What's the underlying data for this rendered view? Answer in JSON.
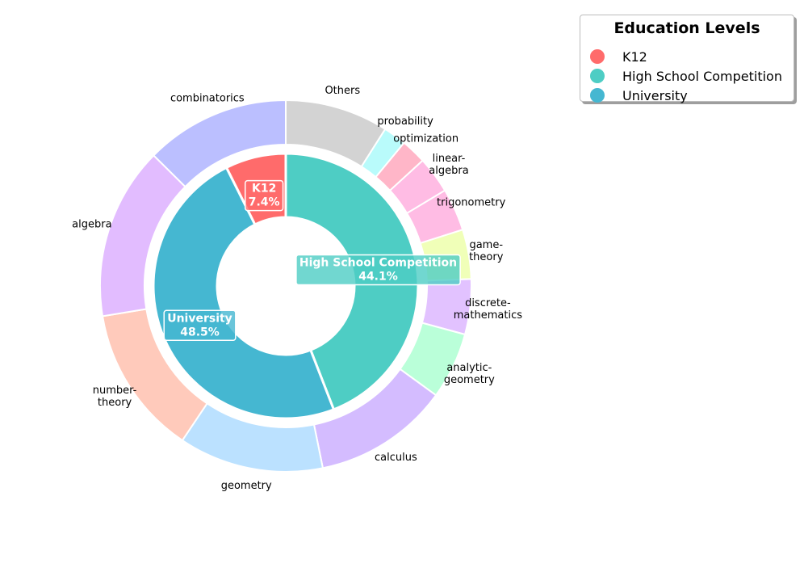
{
  "chart_data": {
    "type": "pie",
    "legend": {
      "title": "Education Levels",
      "placement": "top-right",
      "entries": [
        {
          "name": "K12",
          "color": "#ff6b6b"
        },
        {
          "name": "High School Competition",
          "color": "#4ecdc4"
        },
        {
          "name": "University",
          "color": "#45b7d1"
        }
      ]
    },
    "inner_ring": [
      {
        "name": "K12",
        "value": 7.4,
        "label": "7.4%",
        "color": "#ff6b6b"
      },
      {
        "name": "High School Competition",
        "value": 44.1,
        "label": "44.1%",
        "color": "#4ecdc4"
      },
      {
        "name": "University",
        "value": 48.5,
        "label": "48.5%",
        "color": "#45b7d1"
      }
    ],
    "outer_ring": [
      {
        "name": "Others",
        "label": [
          "Others"
        ],
        "value": 9.0,
        "color": "#d3d3d3"
      },
      {
        "name": "probability",
        "label": [
          "probability"
        ],
        "value": 2.0,
        "color": "#b9fbfb"
      },
      {
        "name": "optimization",
        "label": [
          "optimization"
        ],
        "value": 2.2,
        "color": "#ffb6c8"
      },
      {
        "name": "linear-algebra",
        "label": [
          "linear-",
          "algebra"
        ],
        "value": 3.2,
        "color": "#ffbce4"
      },
      {
        "name": "trigonometry",
        "label": [
          "trigonometry"
        ],
        "value": 3.7,
        "color": "#ffbce4"
      },
      {
        "name": "game-theory",
        "label": [
          "game-",
          "theory"
        ],
        "value": 4.3,
        "color": "#f0ffb8"
      },
      {
        "name": "discrete-mathematics",
        "label": [
          "discrete-",
          "mathematics"
        ],
        "value": 4.8,
        "color": "#e2c2ff"
      },
      {
        "name": "analytic-geometry",
        "label": [
          "analytic-",
          "geometry"
        ],
        "value": 5.8,
        "color": "#baffd9"
      },
      {
        "name": "calculus",
        "label": [
          "calculus"
        ],
        "value": 11.8,
        "color": "#d4bcff"
      },
      {
        "name": "geometry",
        "label": [
          "geometry"
        ],
        "value": 12.6,
        "color": "#bbe1ff"
      },
      {
        "name": "number-theory",
        "label": [
          "number-",
          "theory"
        ],
        "value": 13.0,
        "color": "#ffcabb"
      },
      {
        "name": "algebra",
        "label": [
          "algebra"
        ],
        "value": 15.0,
        "color": "#e2bcff"
      },
      {
        "name": "combinatorics",
        "label": [
          "combinatorics"
        ],
        "value": 12.6,
        "color": "#bbbfff"
      }
    ]
  }
}
